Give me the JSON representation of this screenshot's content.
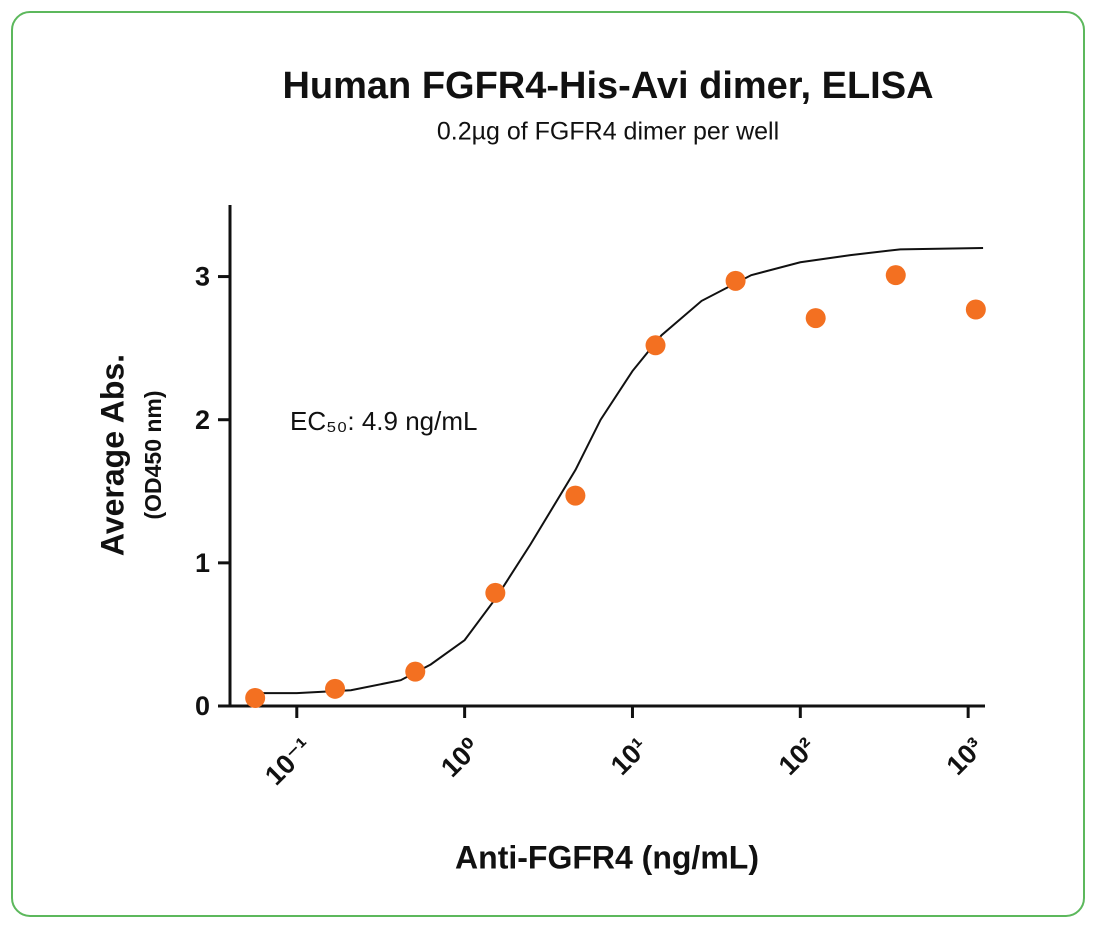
{
  "chart_data": {
    "type": "scatter",
    "title": "Human FGFR4-His-Avi dimer, ELISA",
    "subtitle": "0.2µg of FGFR4 dimer per well",
    "x_label": "Anti-FGFR4 (ng/mL)",
    "y_label": "Average Abs.",
    "y_label_sub": "(OD450 nm)",
    "annotation": "EC₅₀: 4.9 ng/mL",
    "xscale": "log",
    "xlim": [
      0.04,
      1260
    ],
    "xticks": [
      {
        "value": 0.1,
        "label": "10⁻¹"
      },
      {
        "value": 1,
        "label": "10⁰"
      },
      {
        "value": 10,
        "label": "10¹"
      },
      {
        "value": 100,
        "label": "10²"
      },
      {
        "value": 1000,
        "label": "10³"
      }
    ],
    "ylim": [
      0,
      3.5
    ],
    "yticks": [
      0,
      1,
      2,
      3
    ],
    "series": [
      {
        "type": "scatter",
        "color": "#f37021",
        "x": [
          0.0565,
          0.169,
          0.508,
          1.524,
          4.57,
          13.72,
          41.15,
          123.5,
          370.4,
          1111.1
        ],
        "values": [
          0.056,
          0.12,
          0.24,
          0.79,
          1.47,
          2.52,
          2.97,
          2.71,
          3.01,
          2.77
        ]
      },
      {
        "type": "line",
        "color": "#111111",
        "x": [
          0.051,
          0.1,
          0.21,
          0.416,
          0.628,
          1,
          1.55,
          2.47,
          4.58,
          6.46,
          10,
          14.9,
          25.8,
          51,
          100,
          199,
          394,
          1227
        ],
        "values": [
          0.09,
          0.09,
          0.11,
          0.18,
          0.29,
          0.46,
          0.76,
          1.13,
          1.65,
          2.0,
          2.34,
          2.59,
          2.83,
          3.01,
          3.1,
          3.15,
          3.19,
          3.2
        ]
      }
    ]
  }
}
